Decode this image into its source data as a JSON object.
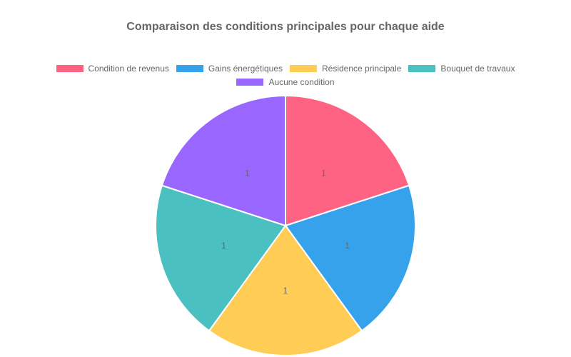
{
  "chart_data": {
    "type": "pie",
    "title": "Comparaison des conditions principales pour chaque aide",
    "categories": [
      "Condition de revenus",
      "Gains énergétiques",
      "Résidence principale",
      "Bouquet de travaux",
      "Aucune condition"
    ],
    "values": [
      1,
      1,
      1,
      1,
      1
    ],
    "colors": [
      "#ff6384",
      "#36a2eb",
      "#ffcd56",
      "#4bc0c0",
      "#9966ff"
    ],
    "data_labels": [
      "1",
      "1",
      "1",
      "1",
      "1"
    ],
    "legend_position": "top",
    "border_color": "#ffffff"
  },
  "legend": {
    "row1": [
      {
        "label": "Condition de revenus",
        "color": "#ff6384"
      },
      {
        "label": "Gains énergétiques",
        "color": "#36a2eb"
      },
      {
        "label": "Résidence principale",
        "color": "#ffcd56"
      },
      {
        "label": "Bouquet de travaux",
        "color": "#4bc0c0"
      }
    ],
    "row2": [
      {
        "label": "Aucune condition",
        "color": "#9966ff"
      }
    ]
  }
}
